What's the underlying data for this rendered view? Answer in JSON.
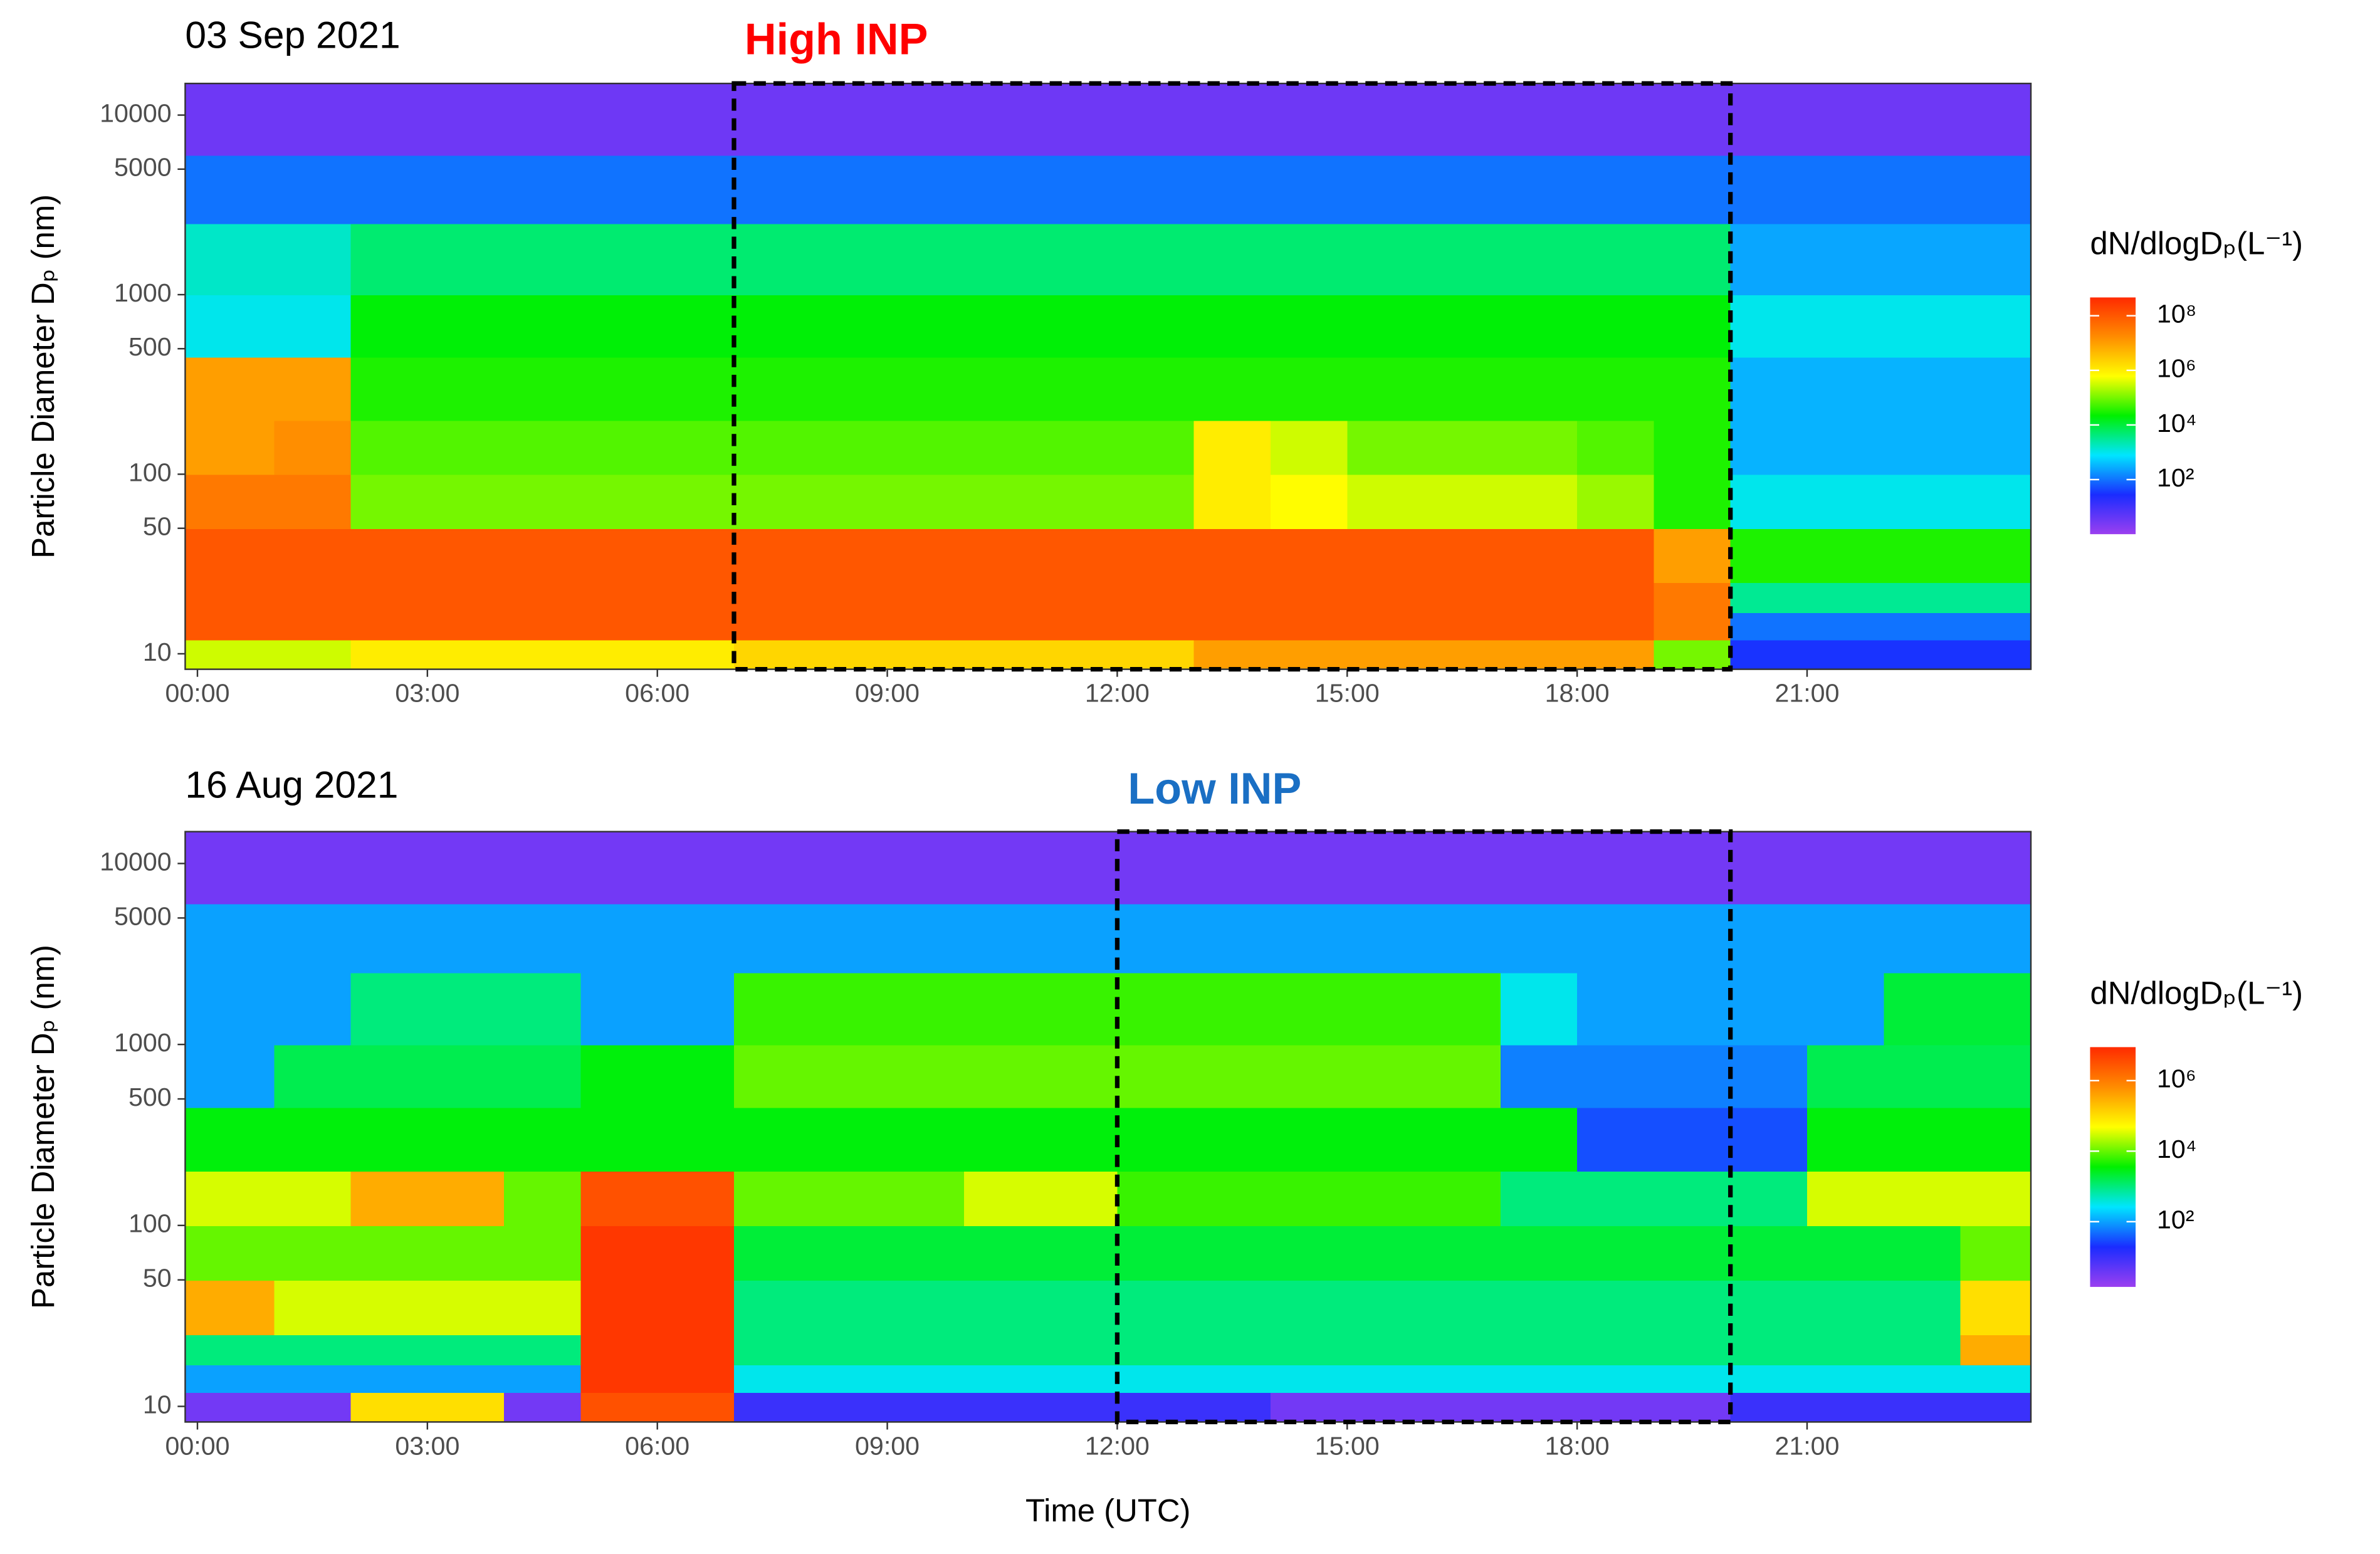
{
  "chart_data": [
    {
      "type": "heatmap",
      "title": "03 Sep 2021",
      "ylabel": "Particle Diameter Dₚ (nm)",
      "log_y": true,
      "xlim": [
        -0.16,
        23.92
      ],
      "ylim": [
        8.2,
        15000
      ],
      "xticks": [
        {
          "value": 0,
          "label": "00:00"
        },
        {
          "value": 3,
          "label": "03:00"
        },
        {
          "value": 6,
          "label": "06:00"
        },
        {
          "value": 9,
          "label": "09:00"
        },
        {
          "value": 12,
          "label": "12:00"
        },
        {
          "value": 15,
          "label": "15:00"
        },
        {
          "value": 18,
          "label": "18:00"
        },
        {
          "value": 21,
          "label": "21:00"
        }
      ],
      "yticks": [
        10,
        50,
        100,
        500,
        1000,
        5000,
        10000
      ],
      "x_edges": [
        -0.16,
        1,
        2,
        3,
        4,
        5,
        6,
        7,
        8,
        9,
        10,
        11,
        12,
        13,
        14,
        15,
        16,
        17,
        18,
        19,
        20,
        21,
        22,
        23,
        23.92
      ],
      "y_edges": [
        8.2,
        12,
        17,
        25,
        50,
        100,
        200,
        450,
        1000,
        2500,
        6000,
        15000
      ],
      "z": [
        [
          5.5,
          5.5,
          6,
          6,
          6,
          6,
          6,
          6.3,
          6.3,
          6.3,
          6.3,
          6.3,
          6.3,
          7,
          7,
          7,
          7,
          7,
          7,
          5,
          1.5,
          1.5,
          1.5,
          1.5
        ],
        [
          8,
          8,
          8,
          8,
          8,
          8,
          8,
          8,
          8,
          8,
          8,
          8,
          8,
          8,
          8,
          8,
          8,
          8,
          8,
          7.5,
          2,
          2,
          2,
          2
        ],
        [
          8,
          8,
          8,
          8,
          8,
          8,
          8,
          8,
          8,
          8,
          8,
          8,
          8,
          8,
          8,
          8,
          8,
          8,
          8,
          7.5,
          3.5,
          3.5,
          3.5,
          3.5
        ],
        [
          8,
          8,
          8,
          8,
          8,
          8,
          8,
          8,
          8,
          8,
          8,
          8,
          8,
          8,
          8,
          8,
          8,
          8,
          8,
          7,
          4.5,
          4.5,
          4.5,
          4.5
        ],
        [
          7.5,
          7.5,
          5,
          5,
          5,
          5,
          5,
          5,
          5,
          5,
          5,
          5,
          5,
          6,
          5.8,
          5.5,
          5.5,
          5.5,
          5.2,
          4.5,
          3,
          3,
          3,
          3
        ],
        [
          7,
          7.2,
          4.8,
          4.8,
          4.8,
          4.8,
          4.8,
          4.8,
          4.8,
          4.8,
          4.8,
          4.8,
          4.8,
          6,
          5.5,
          5,
          5,
          5,
          4.8,
          4.5,
          2.5,
          2.5,
          2.5,
          2.5
        ],
        [
          7,
          7,
          4.5,
          4.5,
          4.5,
          4.5,
          4.5,
          4.5,
          4.5,
          4.5,
          4.5,
          4.5,
          4.5,
          4.5,
          4.5,
          4.5,
          4.5,
          4.5,
          4.5,
          4.5,
          2.5,
          2.5,
          2.5,
          2.5
        ],
        [
          3,
          3,
          4.3,
          4.3,
          4.3,
          4.3,
          4.3,
          4.3,
          4.3,
          4.3,
          4.3,
          4.3,
          4.3,
          4.3,
          4.3,
          4.3,
          4.3,
          4.3,
          4.3,
          4.3,
          3,
          3,
          3,
          3
        ],
        [
          3.2,
          3.2,
          3.7,
          3.7,
          3.7,
          3.7,
          3.7,
          3.7,
          3.7,
          3.7,
          3.7,
          3.7,
          3.7,
          3.7,
          3.7,
          3.7,
          3.7,
          3.7,
          3.7,
          3.7,
          2.4,
          2.4,
          2.4,
          2.4
        ],
        [
          2,
          2,
          2,
          2,
          2,
          2,
          2,
          2,
          2,
          2,
          2,
          2,
          2,
          2,
          2,
          2,
          2,
          2,
          2,
          2,
          2,
          2,
          2,
          2
        ],
        [
          0.5,
          0.5,
          0.5,
          0.5,
          0.5,
          0.5,
          0.5,
          0.5,
          0.5,
          0.5,
          0.5,
          0.5,
          0.5,
          0.5,
          0.5,
          0.5,
          0.5,
          0.5,
          0.5,
          0.5,
          0.5,
          0.5,
          0.5,
          0.5
        ]
      ],
      "colorbar": {
        "title": "dN/dlogDₚ(L⁻¹)",
        "lim": [
          0,
          8.67
        ],
        "ticks": [
          {
            "value": 2,
            "label": "10²"
          },
          {
            "value": 4,
            "label": "10⁴"
          },
          {
            "value": 6,
            "label": "10⁶"
          },
          {
            "value": 8,
            "label": "10⁸"
          }
        ],
        "colors": [
          "#9b3ff0",
          "#1a2cff",
          "#00e5ff",
          "#00f000",
          "#ffff00",
          "#ff8c00",
          "#ff2a00"
        ]
      },
      "annotation": {
        "text": "High INP",
        "color": "#ff0000",
        "x": [
          7,
          20
        ]
      }
    },
    {
      "type": "heatmap",
      "title": "16 Aug 2021",
      "ylabel": "Particle Diameter Dₚ (nm)",
      "xlabel": "Time (UTC)",
      "log_y": true,
      "xlim": [
        -0.16,
        23.92
      ],
      "ylim": [
        8.2,
        15000
      ],
      "xticks": [
        {
          "value": 0,
          "label": "00:00"
        },
        {
          "value": 3,
          "label": "03:00"
        },
        {
          "value": 6,
          "label": "06:00"
        },
        {
          "value": 9,
          "label": "09:00"
        },
        {
          "value": 12,
          "label": "12:00"
        },
        {
          "value": 15,
          "label": "15:00"
        },
        {
          "value": 18,
          "label": "18:00"
        },
        {
          "value": 21,
          "label": "21:00"
        }
      ],
      "yticks": [
        10,
        50,
        100,
        500,
        1000,
        5000,
        10000
      ],
      "x_edges": [
        -0.16,
        1,
        2,
        3,
        4,
        5,
        6,
        7,
        8,
        9,
        10,
        11,
        12,
        13,
        14,
        15,
        16,
        17,
        18,
        19,
        20,
        21,
        22,
        23,
        23.92
      ],
      "y_edges": [
        8.2,
        12,
        17,
        25,
        50,
        100,
        200,
        450,
        1000,
        2500,
        6000,
        15000
      ],
      "z": [
        [
          0.5,
          0.5,
          5,
          5,
          0.5,
          6.5,
          6.5,
          1,
          1,
          1,
          1,
          1,
          1,
          1,
          0.5,
          0.5,
          0.5,
          0.5,
          0.5,
          0.5,
          1,
          1,
          1,
          1
        ],
        [
          2,
          2,
          2,
          2,
          2,
          6.8,
          6.8,
          2.5,
          2.5,
          2.5,
          2.5,
          2.5,
          2.5,
          2.5,
          2.5,
          2.5,
          2.5,
          2.5,
          2.5,
          2.5,
          2.5,
          2.5,
          2.5,
          2.5
        ],
        [
          3,
          3,
          3,
          3,
          3,
          6.8,
          6.8,
          3,
          3,
          3,
          3,
          3,
          3,
          3,
          3,
          3,
          3,
          3,
          3,
          3,
          3,
          3,
          3,
          5.5
        ],
        [
          5.5,
          4.5,
          4.5,
          4.5,
          4.5,
          6.8,
          6.8,
          3,
          3,
          3,
          3,
          3,
          3,
          3,
          3,
          3,
          3,
          3,
          3,
          3,
          3,
          3,
          3,
          5
        ],
        [
          4,
          4,
          4,
          4,
          4,
          6.8,
          6.8,
          3.3,
          3.3,
          3.3,
          3.3,
          3.3,
          3.3,
          3.3,
          3.3,
          3.3,
          3.3,
          3.3,
          3.3,
          3.3,
          3.3,
          3.3,
          3.3,
          4
        ],
        [
          4.5,
          4.5,
          5.5,
          5.5,
          4,
          6.5,
          6.5,
          4,
          4,
          4,
          4.5,
          4.5,
          3.8,
          3.8,
          3.8,
          3.8,
          3.8,
          3,
          3,
          3,
          3,
          4.5,
          4.5,
          4.5
        ],
        [
          3.5,
          3.5,
          3.5,
          3.5,
          3.5,
          3.5,
          3.5,
          3.5,
          3.5,
          3.5,
          3.5,
          3.5,
          3.5,
          3.5,
          3.5,
          3.5,
          3.5,
          3.5,
          1.5,
          1.5,
          1.5,
          3.5,
          3.5,
          3.5
        ],
        [
          2,
          3.2,
          3.2,
          3.2,
          3.2,
          3.5,
          3.5,
          4,
          4,
          4,
          4,
          4,
          4,
          4,
          4,
          4,
          4,
          1.8,
          1.8,
          1.8,
          1.8,
          3.2,
          3.2,
          3.2
        ],
        [
          2,
          2,
          3,
          3,
          3,
          2,
          2,
          3.8,
          3.8,
          3.8,
          3.8,
          3.8,
          3.8,
          3.8,
          3.8,
          3.8,
          3.8,
          2.5,
          2,
          2,
          2,
          2,
          3.3,
          3.3
        ],
        [
          2,
          2,
          2,
          2,
          2,
          2,
          2,
          2,
          2,
          2,
          2,
          2,
          2,
          2,
          2,
          2,
          2,
          2,
          2,
          2,
          2,
          2,
          2,
          2
        ],
        [
          0.5,
          0.5,
          0.5,
          0.5,
          0.5,
          0.5,
          0.5,
          0.5,
          0.5,
          0.5,
          0.5,
          0.5,
          0.5,
          0.5,
          0.5,
          0.5,
          0.5,
          0.5,
          0.5,
          0.5,
          0.5,
          0.5,
          0.5,
          0.5
        ]
      ],
      "colorbar": {
        "title": "dN/dlogDₚ(L⁻¹)",
        "lim": [
          0.15,
          6.95
        ],
        "ticks": [
          {
            "value": 2,
            "label": "10²"
          },
          {
            "value": 4,
            "label": "10⁴"
          },
          {
            "value": 6,
            "label": "10⁶"
          }
        ],
        "colors": [
          "#9b3ff0",
          "#1a2cff",
          "#00e5ff",
          "#00f000",
          "#ffff00",
          "#ff8c00",
          "#ff2a00"
        ]
      },
      "annotation": {
        "text": "Low INP",
        "color": "#1a6fc4",
        "x": [
          12,
          20
        ]
      }
    }
  ]
}
